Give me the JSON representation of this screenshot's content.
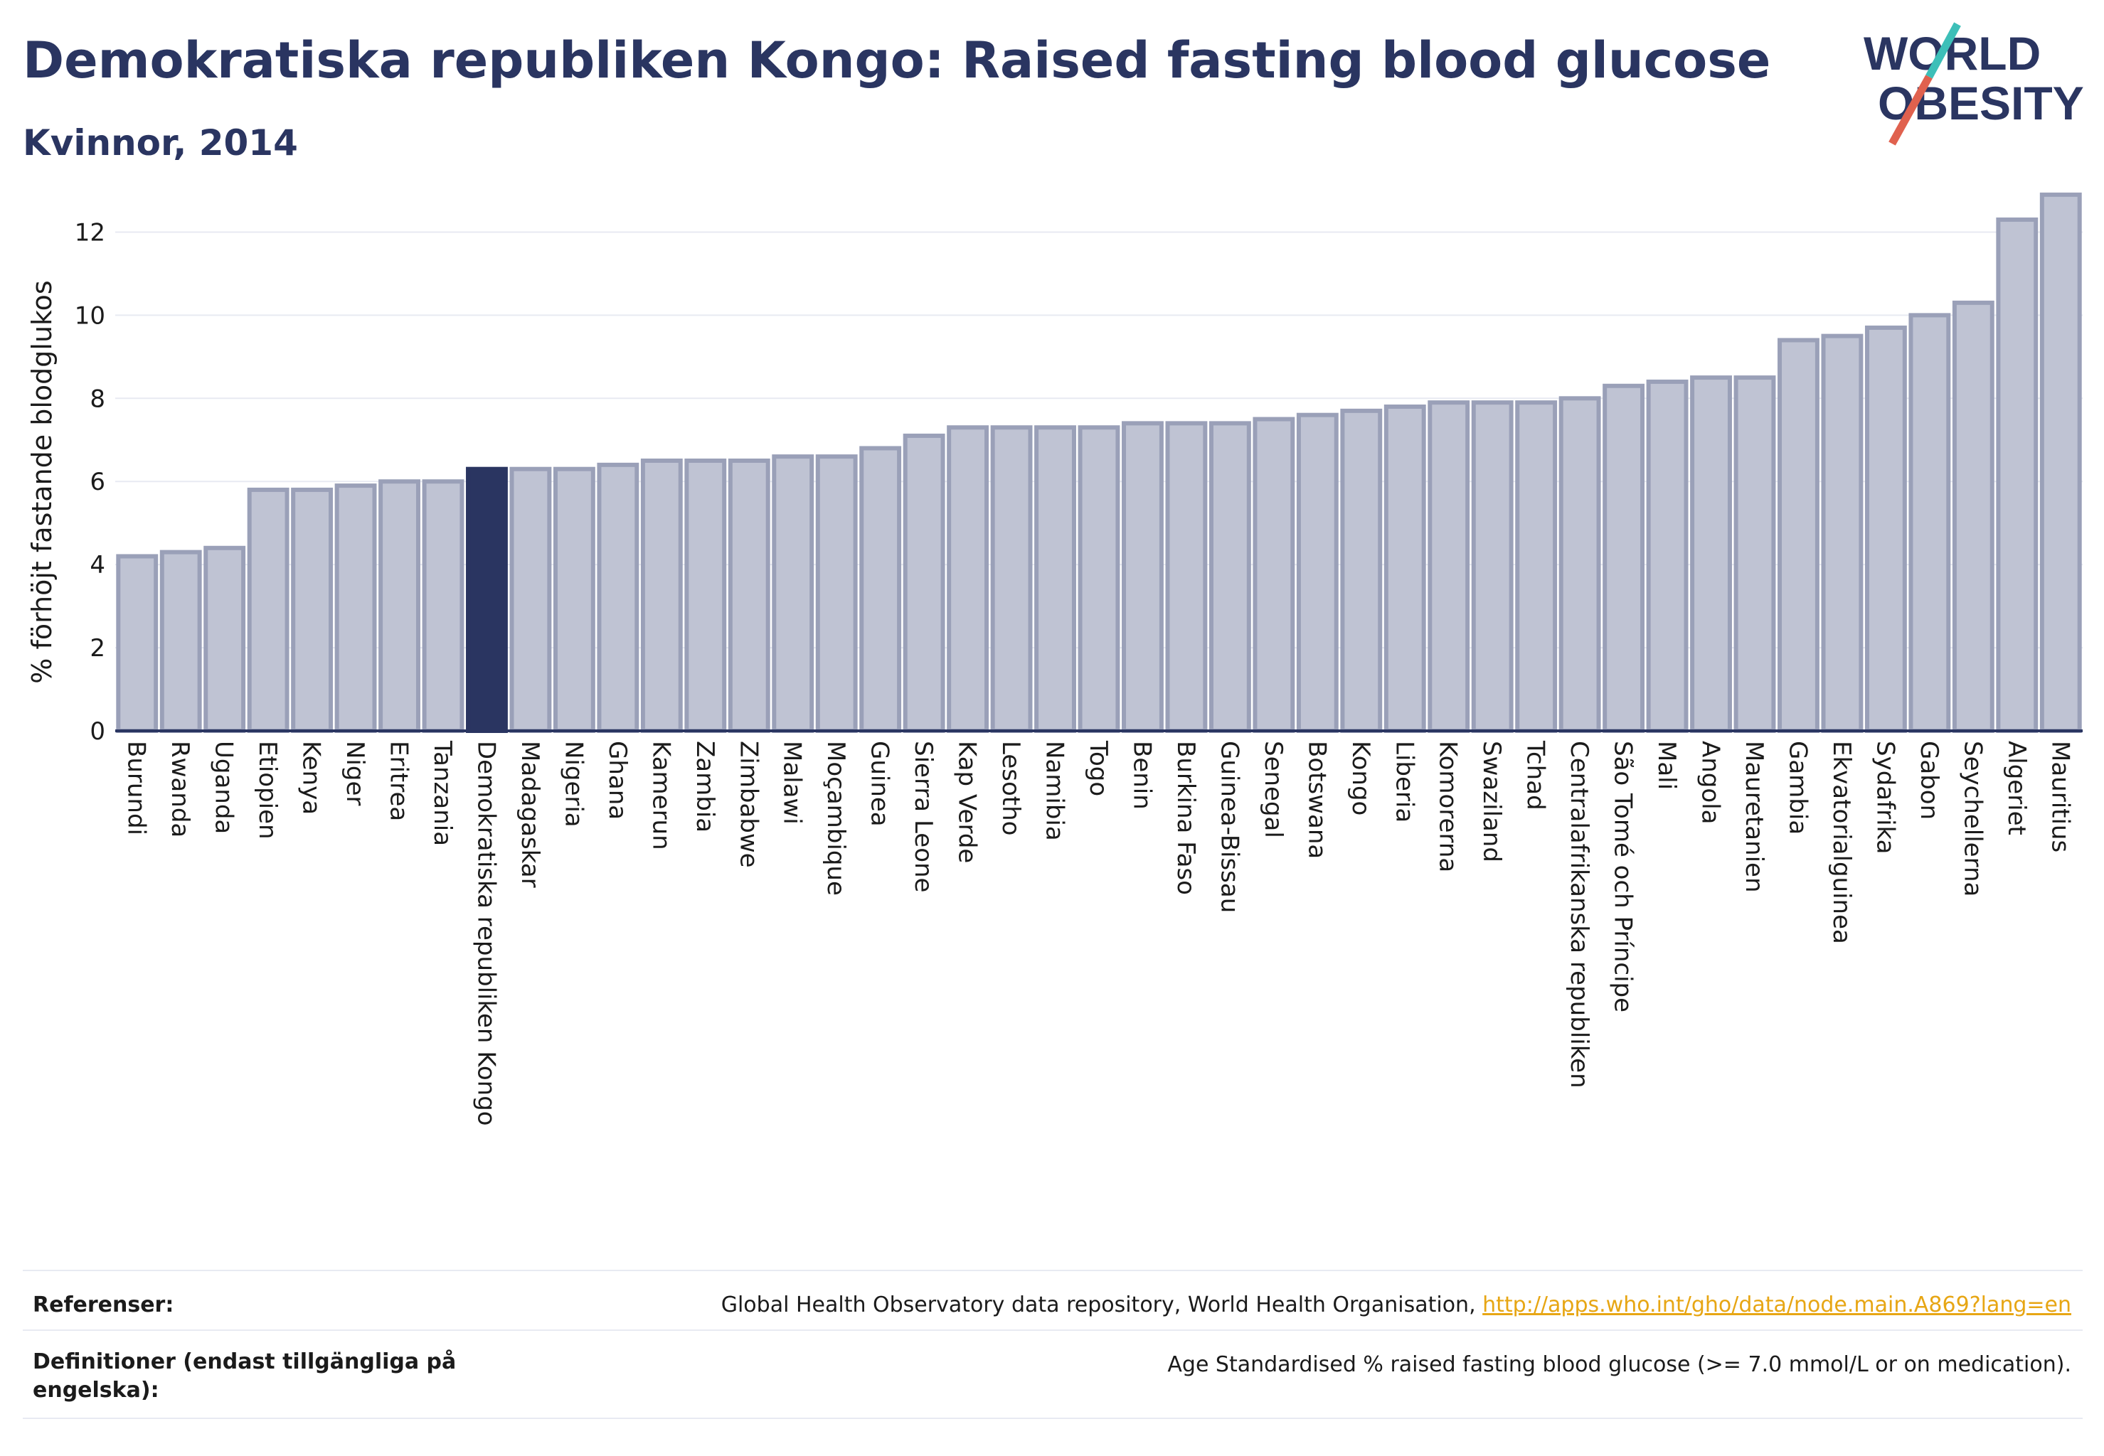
{
  "header": {
    "title": "Demokratiska republiken Kongo: Raised fasting blood glucose",
    "subtitle": "Kvinnor, 2014"
  },
  "logo": {
    "line1": "WORLD",
    "line2": "OBESITY",
    "accent_colors": [
      "#3dbfb8",
      "#e0614e"
    ]
  },
  "footer": {
    "ref_label": "Referenser:",
    "ref_text": "Global Health Observatory data repository, World Health Organisation, ",
    "ref_link": "http://apps.who.int/gho/data/node.main.A869?lang=en",
    "def_label": "Definitioner (endast tillgängliga på engelska):",
    "def_text": "Age Standardised % raised fasting blood glucose (>= 7.0 mmol/L or on medication)."
  },
  "colors": {
    "bar": "#bfc3d3",
    "bar_stroke": "#9aa0b8",
    "highlight": "#2a3561",
    "axis": "#2a3561",
    "grid": "#e8eaf2"
  },
  "chart_data": {
    "type": "bar",
    "ylabel": "% förhöjt fastande blodglukos",
    "ylim": [
      0,
      13
    ],
    "yticks": [
      0,
      2,
      4,
      6,
      8,
      10,
      12
    ],
    "highlight": "Demokratiska republiken Kongo",
    "categories": [
      "Burundi",
      "Rwanda",
      "Uganda",
      "Etiopien",
      "Kenya",
      "Niger",
      "Eritrea",
      "Tanzania",
      "Demokratiska republiken Kongo",
      "Madagaskar",
      "Nigeria",
      "Ghana",
      "Kamerun",
      "Zambia",
      "Zimbabwe",
      "Malawi",
      "Moçambique",
      "Guinea",
      "Sierra Leone",
      "Kap Verde",
      "Lesotho",
      "Namibia",
      "Togo",
      "Benin",
      "Burkina Faso",
      "Guinea-Bissau",
      "Senegal",
      "Botswana",
      "Kongo",
      "Liberia",
      "Komorerna",
      "Swaziland",
      "Tchad",
      "Centralafrikanska republiken",
      "São Tomé och Príncipe",
      "Mali",
      "Angola",
      "Mauretanien",
      "Gambia",
      "Ekvatorialguinea",
      "Sydafrika",
      "Gabon",
      "Seychellerna",
      "Algeriet",
      "Mauritius"
    ],
    "values": [
      4.2,
      4.3,
      4.4,
      5.8,
      5.8,
      5.9,
      6.0,
      6.0,
      6.3,
      6.3,
      6.3,
      6.4,
      6.5,
      6.5,
      6.5,
      6.6,
      6.6,
      6.8,
      7.1,
      7.3,
      7.3,
      7.3,
      7.3,
      7.4,
      7.4,
      7.4,
      7.5,
      7.6,
      7.7,
      7.8,
      7.9,
      7.9,
      7.9,
      8.0,
      8.3,
      8.4,
      8.5,
      8.5,
      9.4,
      9.5,
      9.7,
      10.0,
      10.3,
      12.3,
      12.9
    ]
  }
}
